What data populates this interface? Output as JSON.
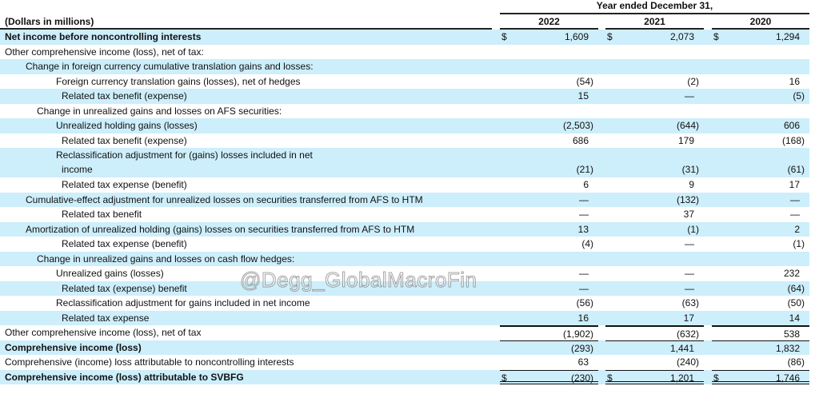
{
  "header": {
    "caption": "Year ended December 31,",
    "units_label": "(Dollars in millions)",
    "years": [
      "2022",
      "2021",
      "2020"
    ]
  },
  "colors": {
    "row_highlight": "#cdeefb"
  },
  "rows": [
    {
      "label": "Net income before noncontrolling interests",
      "indent": 0,
      "bold": true,
      "dollar": true,
      "values": [
        "1,609",
        "2,073",
        "1,294"
      ]
    },
    {
      "label": "Other comprehensive income (loss), net of tax:",
      "indent": 0,
      "values": [
        "",
        "",
        ""
      ]
    },
    {
      "label": "Change in foreign currency cumulative translation gains and losses:",
      "indent": 1,
      "values": [
        "",
        "",
        ""
      ]
    },
    {
      "label": "Foreign currency translation gains (losses), net of hedges",
      "indent": 3,
      "values": [
        "(54)",
        "(2)",
        "16"
      ]
    },
    {
      "label": "Related tax benefit (expense)",
      "indent": 4,
      "values": [
        "15",
        "—",
        "(5)"
      ]
    },
    {
      "label": "Change in unrealized gains and losses on AFS securities:",
      "indent": 2,
      "values": [
        "",
        "",
        ""
      ]
    },
    {
      "label": "Unrealized holding gains (losses)",
      "indent": 3,
      "values": [
        "(2,503)",
        "(644)",
        "606"
      ]
    },
    {
      "label": "Related tax benefit (expense)",
      "indent": 4,
      "values": [
        "686",
        "179",
        "(168)"
      ]
    },
    {
      "label": "Reclassification adjustment for (gains) losses included in net",
      "label2": "income",
      "indent": 3,
      "values": [
        "(21)",
        "(31)",
        "(61)"
      ]
    },
    {
      "label": "Related tax expense (benefit)",
      "indent": 4,
      "values": [
        "6",
        "9",
        "17"
      ]
    },
    {
      "label": "Cumulative-effect adjustment for unrealized losses on securities transferred from AFS to HTM",
      "indent": 1,
      "values": [
        "—",
        "(132)",
        "—"
      ]
    },
    {
      "label": "Related tax benefit",
      "indent": 4,
      "values": [
        "—",
        "37",
        "—"
      ]
    },
    {
      "label": "Amortization of unrealized holding (gains) losses on securities transferred from AFS to HTM",
      "indent": 1,
      "values": [
        "13",
        "(1)",
        "2"
      ]
    },
    {
      "label": "Related tax expense (benefit)",
      "indent": 4,
      "values": [
        "(4)",
        "—",
        "(1)"
      ]
    },
    {
      "label": "Change in unrealized gains and losses on cash flow hedges:",
      "indent": 2,
      "values": [
        "",
        "",
        ""
      ]
    },
    {
      "label": "Unrealized gains (losses)",
      "indent": 3,
      "values": [
        "—",
        "—",
        "232"
      ]
    },
    {
      "label": "Related tax (expense) benefit",
      "indent": 4,
      "values": [
        "—",
        "—",
        "(64)"
      ]
    },
    {
      "label": "Reclassification adjustment for gains included in net income",
      "indent": 3,
      "values": [
        "(56)",
        "(63)",
        "(50)"
      ]
    },
    {
      "label": "Related tax expense",
      "indent": 4,
      "values": [
        "16",
        "17",
        "14"
      ]
    },
    {
      "label": "Other comprehensive income (loss), net of tax",
      "indent": 0,
      "values": [
        "(1,902)",
        "(632)",
        "538"
      ],
      "border": "thick"
    },
    {
      "label": "Comprehensive income (loss)",
      "indent": 0,
      "bold": true,
      "values": [
        "(293)",
        "1,441",
        "1,832"
      ],
      "border": "thin"
    },
    {
      "label": "Comprehensive (income) loss attributable to noncontrolling interests",
      "indent": 0,
      "values": [
        "63",
        "(240)",
        "(86)"
      ]
    },
    {
      "label": "Comprehensive income (loss) attributable to SVBFG",
      "indent": 0,
      "bold": true,
      "dollar": true,
      "values": [
        "(230)",
        "1,201",
        "1,746"
      ],
      "border": "thin",
      "double": true
    }
  ],
  "watermark": "@Degg_GlobalMacroFin"
}
